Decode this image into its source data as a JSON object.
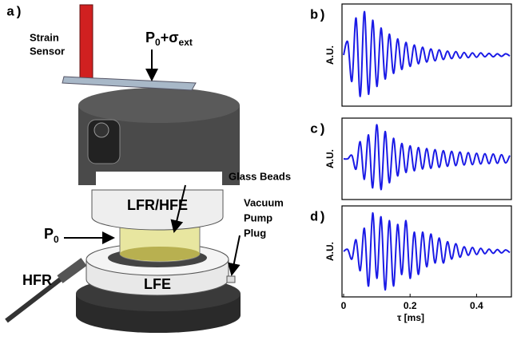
{
  "diagram": {
    "panel": "a)",
    "strain_label": [
      "Strain",
      "Sensor"
    ],
    "load_label": {
      "base": "P",
      "sub": "0",
      "op": "+σ",
      "sub2": "ext"
    },
    "glass_label": "Glass Beads",
    "upper_label": "LFR/HFE",
    "vacuum_label": [
      "Vacuum",
      "Pump",
      "Plug"
    ],
    "pressure_label": {
      "base": "P",
      "sub": "0"
    },
    "probe_label": "HFR",
    "lower_label": "LFE"
  },
  "chart_data": [
    {
      "type": "line",
      "panel": "b)",
      "ylabel": "A.U.",
      "color": "#1a1ae6",
      "xlim": [
        0,
        0.5
      ],
      "ylim": [
        -1.1,
        1.1
      ],
      "x": [
        0,
        0.0125,
        0.025,
        0.0375,
        0.05,
        0.0625,
        0.075,
        0.0875,
        0.1,
        0.1125,
        0.125,
        0.1375,
        0.15,
        0.1625,
        0.175,
        0.1875,
        0.2,
        0.2125,
        0.225,
        0.2375,
        0.25,
        0.2625,
        0.275,
        0.2875,
        0.3,
        0.3125,
        0.325,
        0.3375,
        0.35,
        0.3625,
        0.375,
        0.3875,
        0.4,
        0.4125,
        0.425,
        0.4375,
        0.45,
        0.4625,
        0.475,
        0.4875,
        0.5
      ],
      "values": [
        0,
        0.3,
        -0.6,
        0.85,
        -0.95,
        1,
        -0.9,
        0.8,
        -0.72,
        0.62,
        -0.55,
        0.48,
        -0.42,
        0.37,
        -0.33,
        0.29,
        -0.26,
        0.23,
        -0.2,
        0.18,
        -0.16,
        0.14,
        -0.13,
        0.12,
        -0.1,
        0.09,
        -0.08,
        0.08,
        -0.07,
        0.06,
        -0.06,
        0.05,
        -0.05,
        0.05,
        -0.04,
        0.04,
        -0.04,
        0.03,
        -0.03,
        0.03,
        -0.02
      ]
    },
    {
      "type": "line",
      "panel": "c)",
      "ylabel": "A.U.",
      "color": "#1a1ae6",
      "xlim": [
        0,
        0.5
      ],
      "ylim": [
        -1.1,
        1.1
      ],
      "x": [
        0,
        0.0125,
        0.025,
        0.0375,
        0.05,
        0.0625,
        0.075,
        0.0875,
        0.1,
        0.1125,
        0.125,
        0.1375,
        0.15,
        0.1625,
        0.175,
        0.1875,
        0.2,
        0.2125,
        0.225,
        0.2375,
        0.25,
        0.2625,
        0.275,
        0.2875,
        0.3,
        0.3125,
        0.325,
        0.3375,
        0.35,
        0.3625,
        0.375,
        0.3875,
        0.4,
        0.4125,
        0.425,
        0.4375,
        0.45,
        0.4625,
        0.475,
        0.4875,
        0.5
      ],
      "values": [
        0,
        0,
        0.1,
        -0.3,
        0.5,
        -0.6,
        0.7,
        -0.85,
        1,
        -0.9,
        0.8,
        -0.7,
        0.6,
        -0.5,
        0.45,
        -0.4,
        0.38,
        -0.35,
        0.33,
        -0.3,
        0.3,
        -0.28,
        0.27,
        -0.25,
        0.24,
        -0.22,
        0.22,
        -0.2,
        0.2,
        -0.18,
        0.18,
        -0.17,
        0.16,
        -0.15,
        0.15,
        -0.14,
        0.14,
        -0.13,
        0.12,
        -0.12,
        0.1
      ]
    },
    {
      "type": "line",
      "panel": "d)",
      "ylabel": "A.U.",
      "xlabel": "τ [ms]",
      "color": "#1a1ae6",
      "xlim": [
        0,
        0.5
      ],
      "ylim": [
        -1.1,
        1.1
      ],
      "xticks": [
        0,
        0.2,
        0.4
      ],
      "x": [
        0,
        0.0125,
        0.025,
        0.0375,
        0.05,
        0.0625,
        0.075,
        0.0875,
        0.1,
        0.1125,
        0.125,
        0.1375,
        0.15,
        0.1625,
        0.175,
        0.1875,
        0.2,
        0.2125,
        0.225,
        0.2375,
        0.25,
        0.2625,
        0.275,
        0.2875,
        0.3,
        0.3125,
        0.325,
        0.3375,
        0.35,
        0.3625,
        0.375,
        0.3875,
        0.4,
        0.4125,
        0.425,
        0.4375,
        0.45,
        0.4625,
        0.475,
        0.4875,
        0.5
      ],
      "values": [
        0,
        0.05,
        -0.2,
        0.3,
        -0.5,
        0.6,
        -0.9,
        1,
        -0.7,
        0.9,
        -1,
        0.8,
        -0.9,
        0.7,
        -0.6,
        0.8,
        -0.7,
        0.5,
        -0.6,
        0.5,
        -0.4,
        0.45,
        -0.3,
        0.35,
        -0.3,
        0.25,
        -0.2,
        0.2,
        -0.15,
        0.12,
        -0.1,
        0.1,
        -0.08,
        0.08,
        -0.06,
        0.06,
        -0.05,
        0.05,
        -0.04,
        0.04,
        -0.03
      ]
    }
  ]
}
